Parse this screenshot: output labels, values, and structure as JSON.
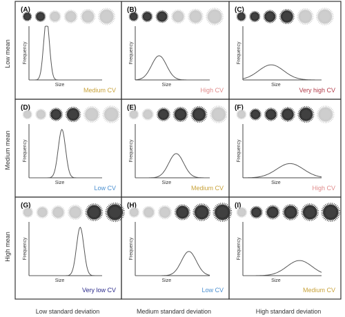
{
  "row_labels": [
    "Low mean",
    "Medium mean",
    "High mean"
  ],
  "col_labels": [
    "Low standard deviation",
    "Medium standard deviation",
    "High standard deviation"
  ],
  "axis": {
    "ylabel": "Frequency",
    "xlabel": "Size"
  },
  "colors": {
    "low": "#4a8fd0",
    "very_low": "#2a2a8a",
    "medium": "#c8a23a",
    "high": "#e08a8a",
    "very_high": "#b03a48",
    "curve": "#555555",
    "border": "#333333"
  },
  "panels": [
    {
      "label": "(A)",
      "cv": "Medium CV",
      "cv_color": "medium",
      "mean": 0.24,
      "sd": 0.04,
      "blobs": [
        [
          "d",
          0.35
        ],
        [
          "d",
          0.55
        ],
        [
          "l",
          0.75
        ],
        [
          "l",
          0.95
        ],
        [
          "l",
          1.15
        ],
        [
          "l",
          1.45
        ]
      ]
    },
    {
      "label": "(B)",
      "cv": "High CV",
      "cv_color": "high",
      "mean": 0.32,
      "sd": 0.1,
      "blobs": [
        [
          "d",
          0.4
        ],
        [
          "d",
          0.6
        ],
        [
          "d",
          0.8
        ],
        [
          "l",
          1.0
        ],
        [
          "l",
          1.2
        ],
        [
          "l",
          1.5
        ]
      ]
    },
    {
      "label": "(C)",
      "cv": "Very high CV",
      "cv_color": "very_high",
      "mean": 0.36,
      "sd": 0.16,
      "blobs": [
        [
          "d",
          0.4
        ],
        [
          "d",
          0.6
        ],
        [
          "d",
          0.9
        ],
        [
          "d",
          1.15
        ],
        [
          "l",
          1.35
        ],
        [
          "l",
          1.5
        ]
      ]
    },
    {
      "label": "(D)",
      "cv": "Low CV",
      "cv_color": "low",
      "mean": 0.45,
      "sd": 0.05,
      "blobs": [
        [
          "l",
          0.4
        ],
        [
          "l",
          0.6
        ],
        [
          "d",
          0.9
        ],
        [
          "d",
          1.2
        ],
        [
          "l",
          1.35
        ],
        [
          "l",
          1.5
        ]
      ]
    },
    {
      "label": "(E)",
      "cv": "Medium CV",
      "cv_color": "medium",
      "mean": 0.55,
      "sd": 0.1,
      "blobs": [
        [
          "l",
          0.45
        ],
        [
          "l",
          0.7
        ],
        [
          "d",
          0.95
        ],
        [
          "d",
          1.15
        ],
        [
          "d",
          1.35
        ],
        [
          "l",
          1.5
        ]
      ]
    },
    {
      "label": "(F)",
      "cv": "High CV",
      "cv_color": "high",
      "mean": 0.6,
      "sd": 0.17,
      "blobs": [
        [
          "l",
          0.45
        ],
        [
          "d",
          0.7
        ],
        [
          "d",
          0.9
        ],
        [
          "d",
          1.1
        ],
        [
          "d",
          1.35
        ],
        [
          "l",
          1.5
        ]
      ]
    },
    {
      "label": "(G)",
      "cv": "Very low CV",
      "cv_color": "very_low",
      "mean": 0.7,
      "sd": 0.05,
      "blobs": [
        [
          "l",
          0.55
        ],
        [
          "l",
          0.75
        ],
        [
          "l",
          0.95
        ],
        [
          "l",
          1.15
        ],
        [
          "d",
          1.5
        ],
        [
          "d",
          1.75
        ]
      ]
    },
    {
      "label": "(H)",
      "cv": "Low CV",
      "cv_color": "low",
      "mean": 0.72,
      "sd": 0.1,
      "blobs": [
        [
          "l",
          0.55
        ],
        [
          "l",
          0.8
        ],
        [
          "l",
          1.0
        ],
        [
          "d",
          1.25
        ],
        [
          "d",
          1.5
        ],
        [
          "d",
          1.7
        ]
      ]
    },
    {
      "label": "(I)",
      "cv": "Medium CV",
      "cv_color": "medium",
      "mean": 0.72,
      "sd": 0.16,
      "blobs": [
        [
          "l",
          0.55
        ],
        [
          "d",
          0.8
        ],
        [
          "d",
          1.05
        ],
        [
          "d",
          1.3
        ],
        [
          "d",
          1.5
        ],
        [
          "d",
          1.7
        ]
      ]
    }
  ]
}
